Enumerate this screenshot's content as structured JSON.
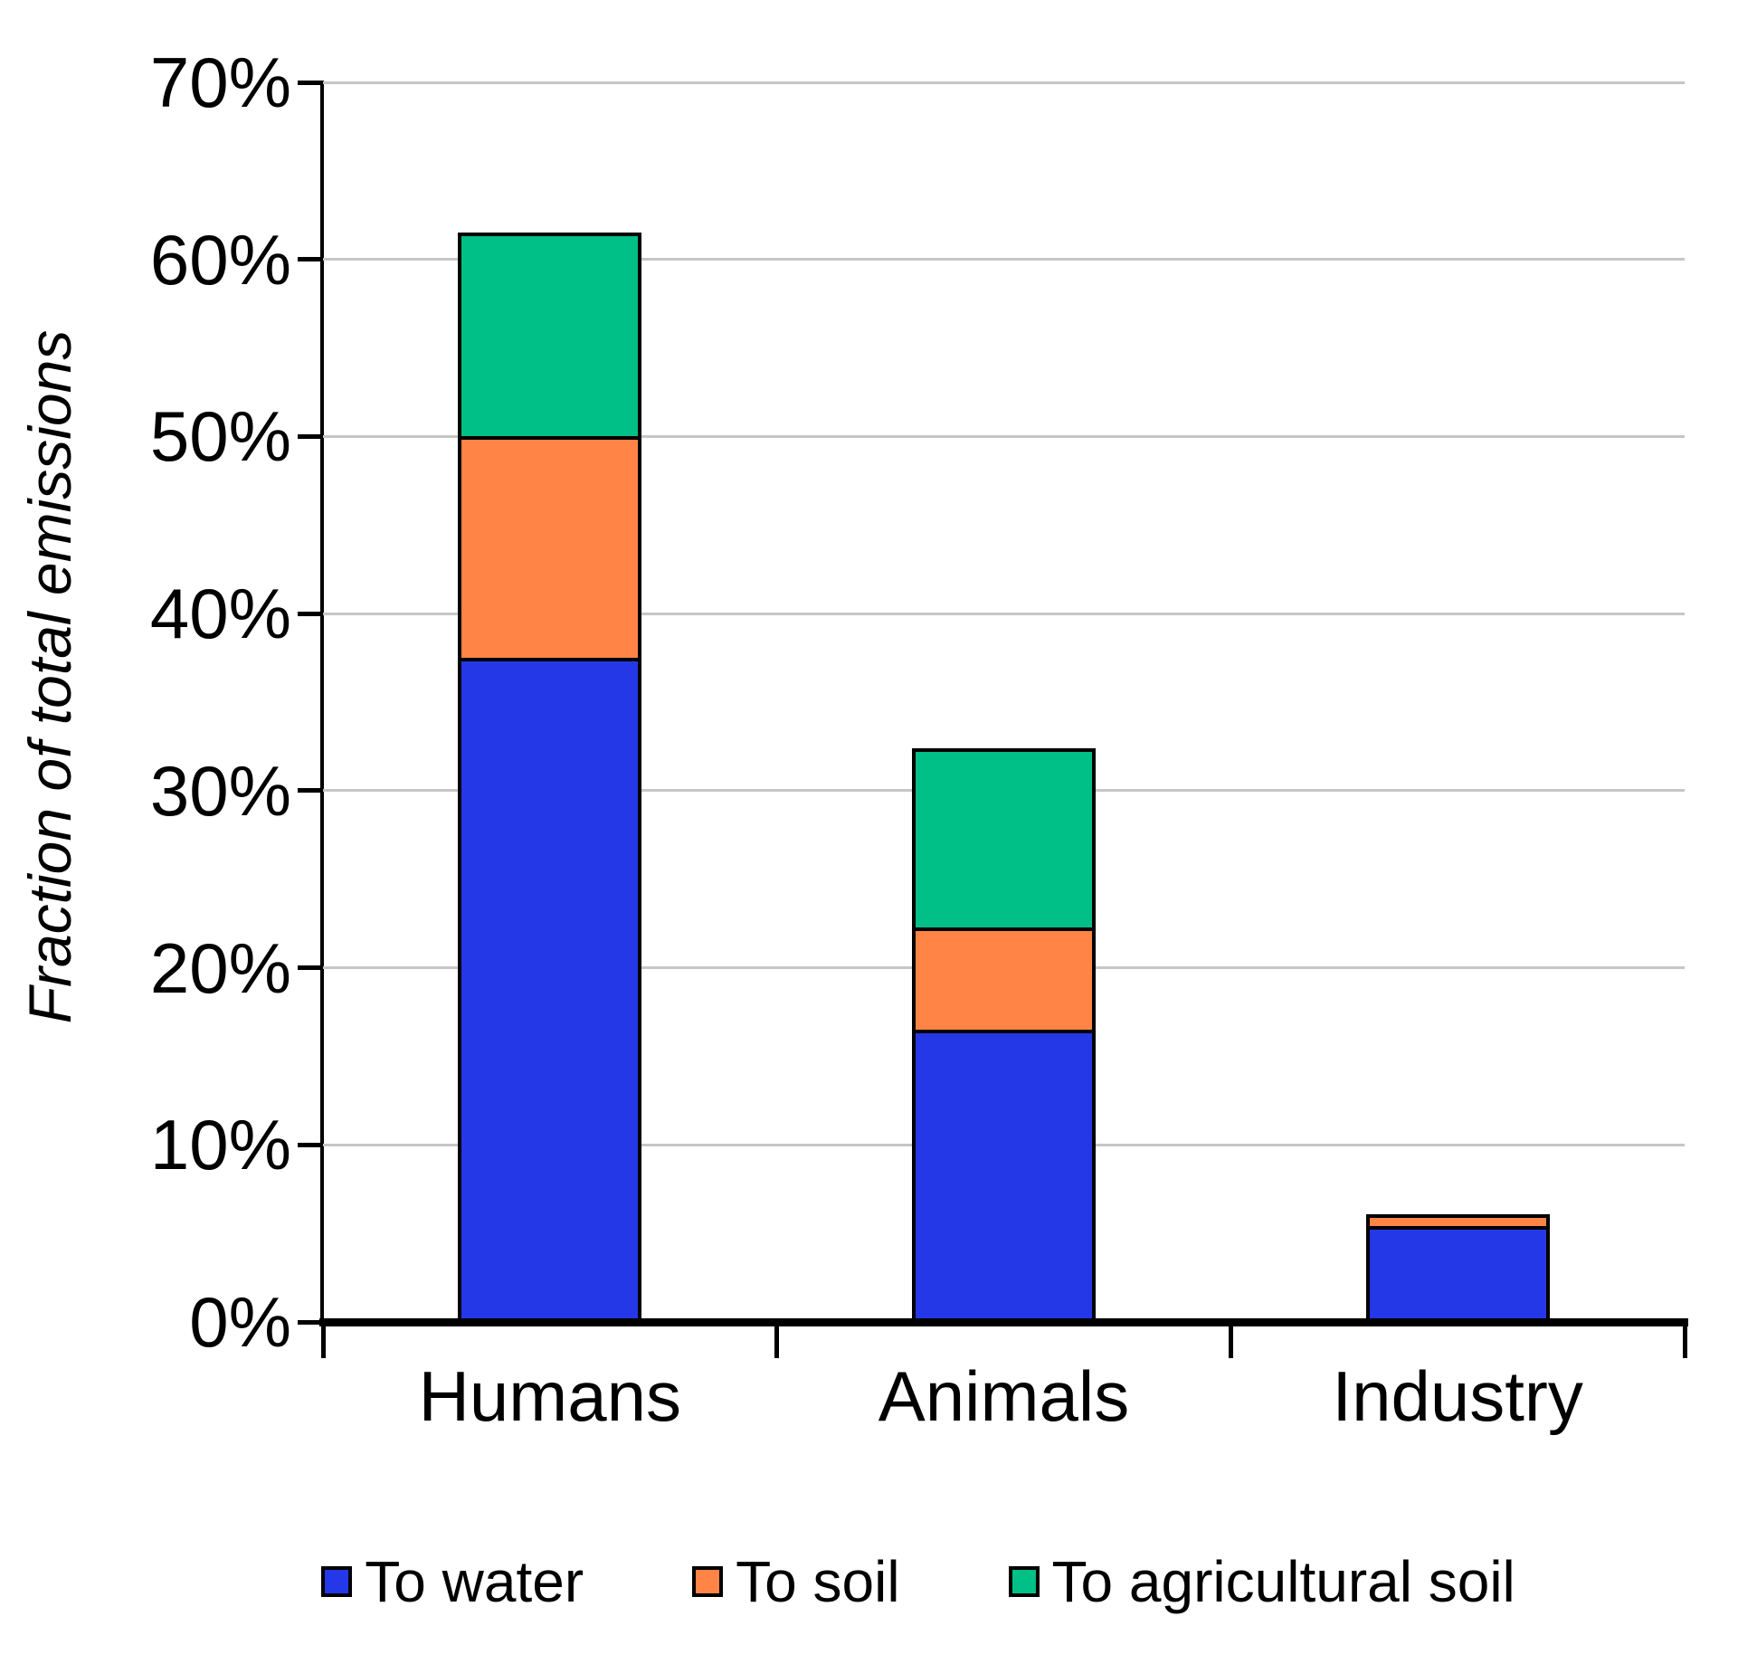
{
  "chart_data": {
    "type": "bar",
    "stacked": true,
    "title": "",
    "xlabel": "",
    "ylabel": "Fraction of total emissions",
    "categories": [
      "Humans",
      "Animals",
      "Industry"
    ],
    "series": [
      {
        "name": "To water",
        "color": "#2438E8",
        "values": [
          37.5,
          16.5,
          5.4
        ]
      },
      {
        "name": "To soil",
        "color": "#FF8445",
        "values": [
          12.5,
          5.8,
          0.7
        ]
      },
      {
        "name": "To agricultural soil",
        "color": "#00BF87",
        "values": [
          11.5,
          10.1,
          0
        ]
      }
    ],
    "totals": [
      61.5,
      32.4,
      6.1
    ],
    "y_axis": {
      "min": 0,
      "max": 70,
      "step": 10,
      "tick_labels": [
        "0%",
        "10%",
        "20%",
        "30%",
        "40%",
        "50%",
        "60%",
        "70%"
      ]
    },
    "grid": true,
    "legend_position": "bottom"
  },
  "colors": {
    "background": "#FFFFFF",
    "axis": "#000000",
    "gridline": "#C6C6C6",
    "bar_border": "#000000",
    "text": "#000000"
  }
}
